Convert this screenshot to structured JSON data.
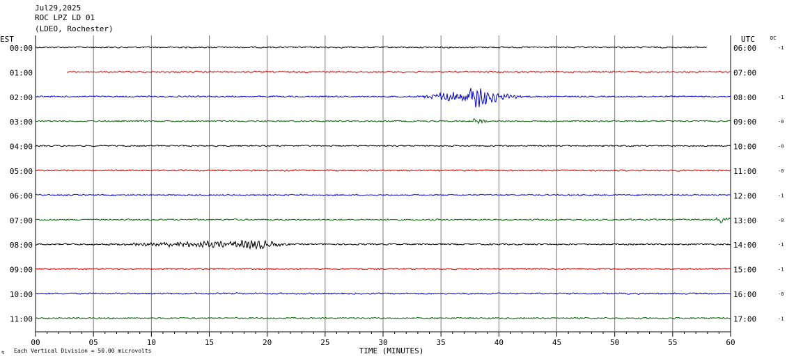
{
  "header": {
    "date": "Jul29,2025",
    "station": "ROC LPZ LD 01",
    "network": "(LDEO, Rochester)"
  },
  "labels": {
    "left_zone": "EST",
    "right_zone": "UTC",
    "dc": "DC",
    "xlabel": "TIME (MINUTES)",
    "scale_note": "Each Vertical Division =   50.00 microvolts"
  },
  "colors": {
    "traces": [
      "#000000",
      "#cc0000",
      "#0000cc",
      "#006600"
    ],
    "grid": "#777777"
  },
  "chart_data": {
    "type": "line",
    "title": "ROC LPZ LD 01",
    "xlabel": "TIME (MINUTES)",
    "xlim": [
      0,
      60
    ],
    "xticks": [
      "00",
      "05",
      "10",
      "15",
      "20",
      "25",
      "30",
      "35",
      "40",
      "45",
      "50",
      "55",
      "60"
    ],
    "grid": true,
    "rows": [
      {
        "est": "00:00",
        "utc": "06:00",
        "dc": "-1",
        "start": 0,
        "end": 58,
        "events": []
      },
      {
        "est": "01:00",
        "utc": "07:00",
        "dc": "",
        "start": 2.7,
        "end": 60,
        "events": []
      },
      {
        "est": "02:00",
        "utc": "08:00",
        "dc": "-1",
        "start": 0,
        "end": 60,
        "events": [
          {
            "t0": 32,
            "t1": 49,
            "peak": 38.5,
            "amp": 11
          }
        ]
      },
      {
        "est": "03:00",
        "utc": "09:00",
        "dc": "-0",
        "start": 0,
        "end": 60,
        "events": [
          {
            "t0": 37,
            "t1": 39,
            "peak": 38,
            "amp": 2
          }
        ]
      },
      {
        "est": "04:00",
        "utc": "10:00",
        "dc": "-0",
        "start": 0,
        "end": 60,
        "events": []
      },
      {
        "est": "05:00",
        "utc": "11:00",
        "dc": "-0",
        "start": 0,
        "end": 60,
        "events": []
      },
      {
        "est": "06:00",
        "utc": "12:00",
        "dc": "-1",
        "start": 0,
        "end": 60,
        "events": []
      },
      {
        "est": "07:00",
        "utc": "13:00",
        "dc": "-0",
        "start": 0,
        "end": 60,
        "events": [
          {
            "t0": 58,
            "t1": 60,
            "peak": 59,
            "amp": 2
          }
        ]
      },
      {
        "est": "08:00",
        "utc": "14:00",
        "dc": "-1",
        "start": 0,
        "end": 60,
        "events": [
          {
            "t0": 1,
            "t1": 22,
            "peak": 19.5,
            "amp": 4
          }
        ]
      },
      {
        "est": "09:00",
        "utc": "15:00",
        "dc": "-1",
        "start": 0,
        "end": 60,
        "events": []
      },
      {
        "est": "10:00",
        "utc": "16:00",
        "dc": "-0",
        "start": 0,
        "end": 60,
        "events": []
      },
      {
        "est": "11:00",
        "utc": "17:00",
        "dc": "-1",
        "start": 0,
        "end": 60,
        "events": []
      }
    ]
  }
}
